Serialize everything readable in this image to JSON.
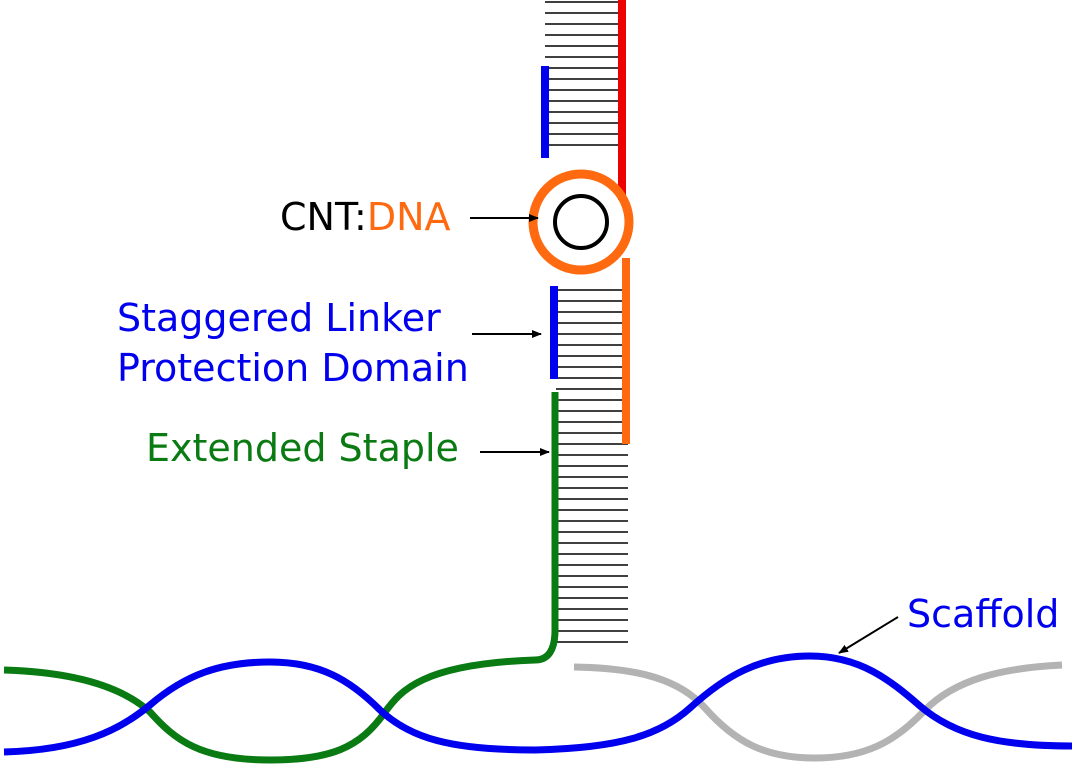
{
  "labels": {
    "cnt_prefix": "CNT:",
    "cnt_dna": "DNA",
    "linker_line1": "Staggered Linker",
    "linker_line2": "Protection Domain",
    "extended_staple": "Extended Staple",
    "scaffold": "Scaffold"
  },
  "colors": {
    "black": "#000000",
    "orange": "#ff6a10",
    "blue": "#0000ee",
    "green": "#0a7a12",
    "red": "#ee0000",
    "gray": "#b3b3b3"
  }
}
